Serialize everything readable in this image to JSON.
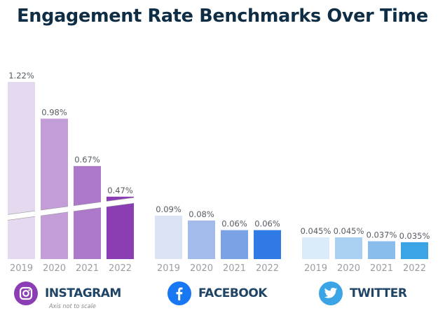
{
  "chart_data": {
    "type": "bar",
    "title": "Engagement Rate Benchmarks Over Time",
    "categories": [
      "2019",
      "2020",
      "2021",
      "2022"
    ],
    "series": [
      {
        "name": "INSTAGRAM",
        "values": [
          1.22,
          0.98,
          0.67,
          0.47
        ],
        "labels": [
          "1.22%",
          "0.98%",
          "0.67%",
          "0.47%"
        ],
        "colors": [
          "#e5d9f0",
          "#c39dd8",
          "#ac78c9",
          "#8b3db3"
        ],
        "axis_break": true
      },
      {
        "name": "FACEBOOK",
        "values": [
          0.09,
          0.08,
          0.06,
          0.06
        ],
        "labels": [
          "0.09%",
          "0.08%",
          "0.06%",
          "0.06%"
        ],
        "colors": [
          "#dbe4f5",
          "#a2bbeb",
          "#7ca2e6",
          "#2f7ae5"
        ]
      },
      {
        "name": "TWITTER",
        "values": [
          0.045,
          0.045,
          0.037,
          0.035
        ],
        "labels": [
          "0.045%",
          "0.045%",
          "0.037%",
          "0.035%"
        ],
        "colors": [
          "#dcebf9",
          "#a9d0f3",
          "#88bdec",
          "#3ba4e6"
        ]
      }
    ],
    "xlabel": "",
    "ylabel": "",
    "grid": false,
    "note": "Axis not to scale"
  },
  "platforms": [
    {
      "name": "INSTAGRAM",
      "icon": "instagram-icon",
      "color": "#8b3db3"
    },
    {
      "name": "FACEBOOK",
      "icon": "facebook-icon",
      "color": "#1877f2"
    },
    {
      "name": "TWITTER",
      "icon": "twitter-icon",
      "color": "#3ba4e6"
    }
  ]
}
